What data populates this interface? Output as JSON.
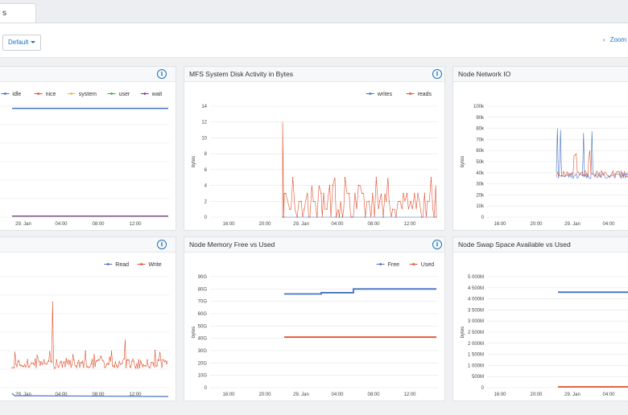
{
  "tabs": [
    {
      "label": "s"
    }
  ],
  "toolbar": {
    "dropdown_label": "Default",
    "zoom_label": "Zoom"
  },
  "colors": {
    "blue": "#4472c4",
    "red": "#e0502e",
    "yellow": "#e8b83b",
    "green": "#44a744",
    "purple": "#7b3f8f",
    "accent": "#1e73be"
  },
  "icons": {
    "info": "info-icon",
    "zoom": "chevron-left-icon"
  },
  "panels": [
    {
      "id": "cpu",
      "title": "",
      "left": -10,
      "top": 82,
      "width": 229,
      "height": 205,
      "info_left": 204,
      "chart_data": {
        "type": "line",
        "xlabel": "",
        "ylabel": "",
        "x_ticks": [
          "29. Jan",
          "04:00",
          "08:00",
          "12:00"
        ],
        "y_ticks": [],
        "series": [
          {
            "name": "idle",
            "color": "#4472c4"
          },
          {
            "name": "nice",
            "color": "#e0502e"
          },
          {
            "name": "system",
            "color": "#e8b83b"
          },
          {
            "name": "user",
            "color": "#44a744"
          },
          {
            "name": "wait",
            "color": "#7b3f8f"
          }
        ],
        "values": {
          "idle": 98,
          "others": 1
        },
        "ylim": [
          0,
          100
        ]
      }
    },
    {
      "id": "disk",
      "title": "MFS System Disk Activity in Bytes",
      "left": 228,
      "top": 82,
      "width": 325,
      "height": 205,
      "info_left": 308,
      "chart_data": {
        "type": "line",
        "xlabel": "",
        "ylabel": "bytes",
        "x_ticks": [
          "16:00",
          "20:00",
          "29. Jan",
          "04:00",
          "08:00",
          "12:00"
        ],
        "y_ticks": [
          "0",
          "2",
          "4",
          "6",
          "8",
          "10",
          "12",
          "14"
        ],
        "ylim": [
          0,
          14
        ],
        "series": [
          {
            "name": "writes",
            "color": "#4472c4"
          },
          {
            "name": "reads",
            "color": "#e0502e"
          }
        ],
        "peak": 12
      }
    },
    {
      "id": "net",
      "title": "Node Network IO",
      "left": 562,
      "top": 82,
      "width": 230,
      "height": 205,
      "info_left": null,
      "chart_data": {
        "type": "line",
        "xlabel": "",
        "ylabel": "bytes",
        "x_ticks": [
          "16:00",
          "20:00",
          "29. Jan",
          "04:00"
        ],
        "y_ticks": [
          "0",
          "10k",
          "20k",
          "30k",
          "40k",
          "50k",
          "60k",
          "70k",
          "80k",
          "90k",
          "100k"
        ],
        "ylim": [
          0,
          100000
        ],
        "series": [
          {
            "name": "",
            "color": "#4472c4"
          },
          {
            "name": "",
            "color": "#e0502e"
          }
        ],
        "base": 39000
      }
    },
    {
      "id": "diskio",
      "title": "",
      "left": -10,
      "top": 294,
      "width": 229,
      "height": 205,
      "info_left": 204,
      "chart_data": {
        "type": "line",
        "xlabel": "",
        "ylabel": "",
        "x_ticks": [
          "29. Jan",
          "04:00",
          "08:00",
          "12:00"
        ],
        "y_ticks": [],
        "series": [
          {
            "name": "Read",
            "color": "#4472c4"
          },
          {
            "name": "Write",
            "color": "#e0502e"
          }
        ]
      }
    },
    {
      "id": "mem",
      "title": "Node Memory Free vs Used",
      "left": 228,
      "top": 294,
      "width": 325,
      "height": 205,
      "info_left": 308,
      "chart_data": {
        "type": "line",
        "xlabel": "",
        "ylabel": "bytes",
        "x_ticks": [
          "16:00",
          "20:00",
          "29. Jan",
          "04:00",
          "08:00",
          "12:00"
        ],
        "y_ticks": [
          "0",
          "10G",
          "20G",
          "30G",
          "40G",
          "50G",
          "60G",
          "70G",
          "80G",
          "90G"
        ],
        "ylim": [
          0,
          90
        ],
        "series": [
          {
            "name": "Free",
            "color": "#4472c4",
            "segments": [
              76,
              77,
              80
            ]
          },
          {
            "name": "Used",
            "color": "#e0502e",
            "value": 41
          }
        ]
      }
    },
    {
      "id": "swap",
      "title": "Node Swap Space Available vs Used",
      "left": 562,
      "top": 294,
      "width": 230,
      "height": 205,
      "info_left": null,
      "chart_data": {
        "type": "line",
        "xlabel": "",
        "ylabel": "bytes",
        "x_ticks": [
          "16:00",
          "20:00",
          "29. Jan",
          "04:00"
        ],
        "y_ticks": [
          "0",
          "500M",
          "1 000M",
          "1 500M",
          "2 000M",
          "2 500M",
          "3 000M",
          "3 500M",
          "4 000M",
          "4 500M",
          "5 000M"
        ],
        "ylim": [
          0,
          5000
        ],
        "series": [
          {
            "name": "",
            "color": "#4472c4",
            "value": 4300
          },
          {
            "name": "",
            "color": "#e0502e",
            "value": 0
          }
        ]
      }
    }
  ]
}
